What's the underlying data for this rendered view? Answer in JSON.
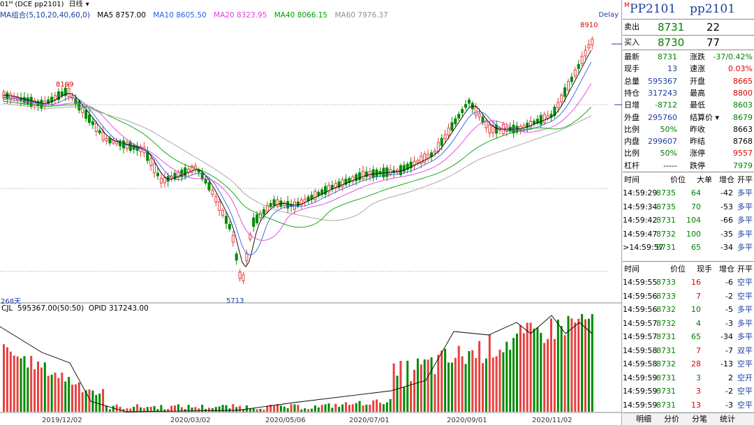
{
  "topbar": {
    "prefix": "01ᴹ (DCE pp2101)",
    "period": "日线",
    "period_arrow": "▾"
  },
  "ma_legend": {
    "group": "MA组合(5,10,20,40,60,0)",
    "ma5": "MA5 8757.00",
    "ma10": "MA10 8605.50",
    "ma20": "MA20 8323.95",
    "ma40": "MA40 8066.15",
    "ma60": "MA60 7976.37"
  },
  "delay": "Delay",
  "price_labels": {
    "high1": "8199",
    "high2": "8910",
    "low": "5713"
  },
  "days_label": "268天",
  "vol_legend": "CJL  595367.00(50:50)  OPID 317243.00",
  "x_axis": [
    "2019/12/02",
    "2020/03/02",
    "2020/05/06",
    "2020/07/01",
    "2020/09/01",
    "2020/11/02"
  ],
  "colors": {
    "up": "#e84040",
    "down": "#008a00",
    "ma5": "#000000",
    "ma10": "#2a5fe0",
    "ma20": "#e040e0",
    "ma40": "#00a000",
    "ma60": "#a0a0a0"
  },
  "quote": {
    "marker": "M",
    "title_a": "PP2101",
    "title_b": "pp2101",
    "sell_label": "卖出",
    "sell_price": "8731",
    "sell_vol": "22",
    "buy_label": "买入",
    "buy_price": "8730",
    "buy_vol": "77",
    "stats": [
      {
        "l1": "最新",
        "v1": "8731",
        "l2": "涨跌",
        "v2": "-37/0.42%"
      },
      {
        "l1": "现手",
        "v1": "13",
        "l2": "速涨",
        "v2": "0.03%"
      },
      {
        "l1": "总量",
        "v1": "595367",
        "l2": "开盘",
        "v2": "8665"
      },
      {
        "l1": "持仓",
        "v1": "317243",
        "l2": "最高",
        "v2": "8800"
      },
      {
        "l1": "日增",
        "v1": "-8712",
        "l2": "最低",
        "v2": "8603"
      },
      {
        "l1": "外盘",
        "v1": "295760",
        "l2": "结算价",
        "v2": "8679"
      },
      {
        "l1": "比例",
        "v1": "50%",
        "l2": "昨收",
        "v2": "8663"
      },
      {
        "l1": "内盘",
        "v1": "299607",
        "l2": "昨结",
        "v2": "8768"
      },
      {
        "l1": "比例",
        "v1": "50%",
        "l2": "涨停",
        "v2": "9557"
      },
      {
        "l1": "杠杆",
        "v1": "-----",
        "l2": "跌停",
        "v2": "7979"
      }
    ],
    "settle_arrow": "▾"
  },
  "big_trades": {
    "headers": [
      "时间",
      "价位",
      "大单",
      "增仓",
      "开平"
    ],
    "rows": [
      {
        "t": "14:59:29",
        "p": "8735",
        "v": "64",
        "z": "-42",
        "k": "多平"
      },
      {
        "t": "14:59:34",
        "p": "8735",
        "v": "70",
        "z": "-53",
        "k": "多平"
      },
      {
        "t": "14:59:42",
        "p": "8731",
        "v": "104",
        "z": "-66",
        "k": "多平"
      },
      {
        "t": "14:59:47",
        "p": "8732",
        "v": "100",
        "z": "-35",
        "k": "多平"
      },
      {
        "t": ">14:59:57",
        "p": "8731",
        "v": "65",
        "z": "-34",
        "k": "多平"
      }
    ]
  },
  "ticks": {
    "headers": [
      "时间",
      "价位",
      "现手",
      "增仓",
      "开平"
    ],
    "rows": [
      {
        "t": "14:59:55",
        "p": "8733",
        "v": "16",
        "z": "-6",
        "k": "空平",
        "c": "red"
      },
      {
        "t": "14:59:56",
        "p": "8733",
        "v": "7",
        "z": "-2",
        "k": "空平",
        "c": "red"
      },
      {
        "t": "14:59:56",
        "p": "8732",
        "v": "10",
        "z": "-5",
        "k": "多平",
        "c": "grn"
      },
      {
        "t": "14:59:57",
        "p": "8732",
        "v": "4",
        "z": "-3",
        "k": "多平",
        "c": "grn"
      },
      {
        "t": "14:59:57",
        "p": "8731",
        "v": "65",
        "z": "-34",
        "k": "多平",
        "c": "grn"
      },
      {
        "t": "14:59:58",
        "p": "8731",
        "v": "7",
        "z": "-7",
        "k": "双平",
        "c": "red"
      },
      {
        "t": "14:59:58",
        "p": "8732",
        "v": "28",
        "z": "-13",
        "k": "空平",
        "c": "red"
      },
      {
        "t": "14:59:59",
        "p": "8731",
        "v": "3",
        "z": "2",
        "k": "空开",
        "c": "grn"
      },
      {
        "t": "14:59:59",
        "p": "8731",
        "v": "3",
        "z": "-2",
        "k": "空平",
        "c": "red"
      },
      {
        "t": "14:59:59",
        "p": "8731",
        "v": "13",
        "z": "-3",
        "k": "空平",
        "c": "red"
      }
    ]
  },
  "tabs": [
    "明细",
    "分价",
    "分笔",
    "统计"
  ]
}
